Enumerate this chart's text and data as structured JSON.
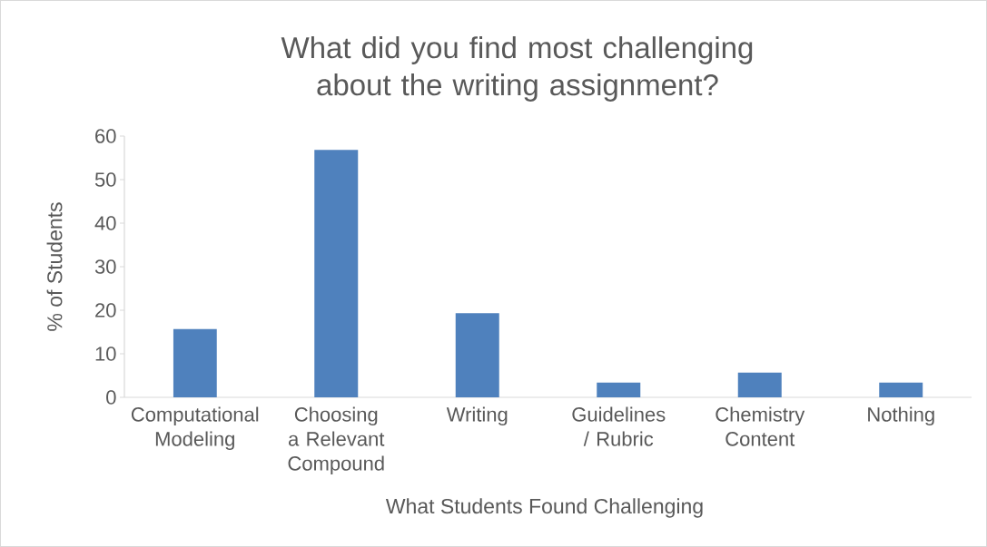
{
  "chart_data": {
    "type": "bar",
    "title": "What did you find most challenging about the writing assignment?",
    "xlabel": "What Students Found Challenging",
    "ylabel": "% of Students",
    "categories": [
      "Computational Modeling",
      "Choosing a Relevant Compound",
      "Writing",
      "Guidelines / Rubric",
      "Chemistry Content",
      "Nothing"
    ],
    "values": [
      15.7,
      56.8,
      19.3,
      3.4,
      5.7,
      3.4
    ],
    "color": "#4f81bd",
    "ylim": [
      0,
      60
    ],
    "yticks": [
      0,
      10,
      20,
      30,
      40,
      50,
      60
    ],
    "grid": false
  }
}
